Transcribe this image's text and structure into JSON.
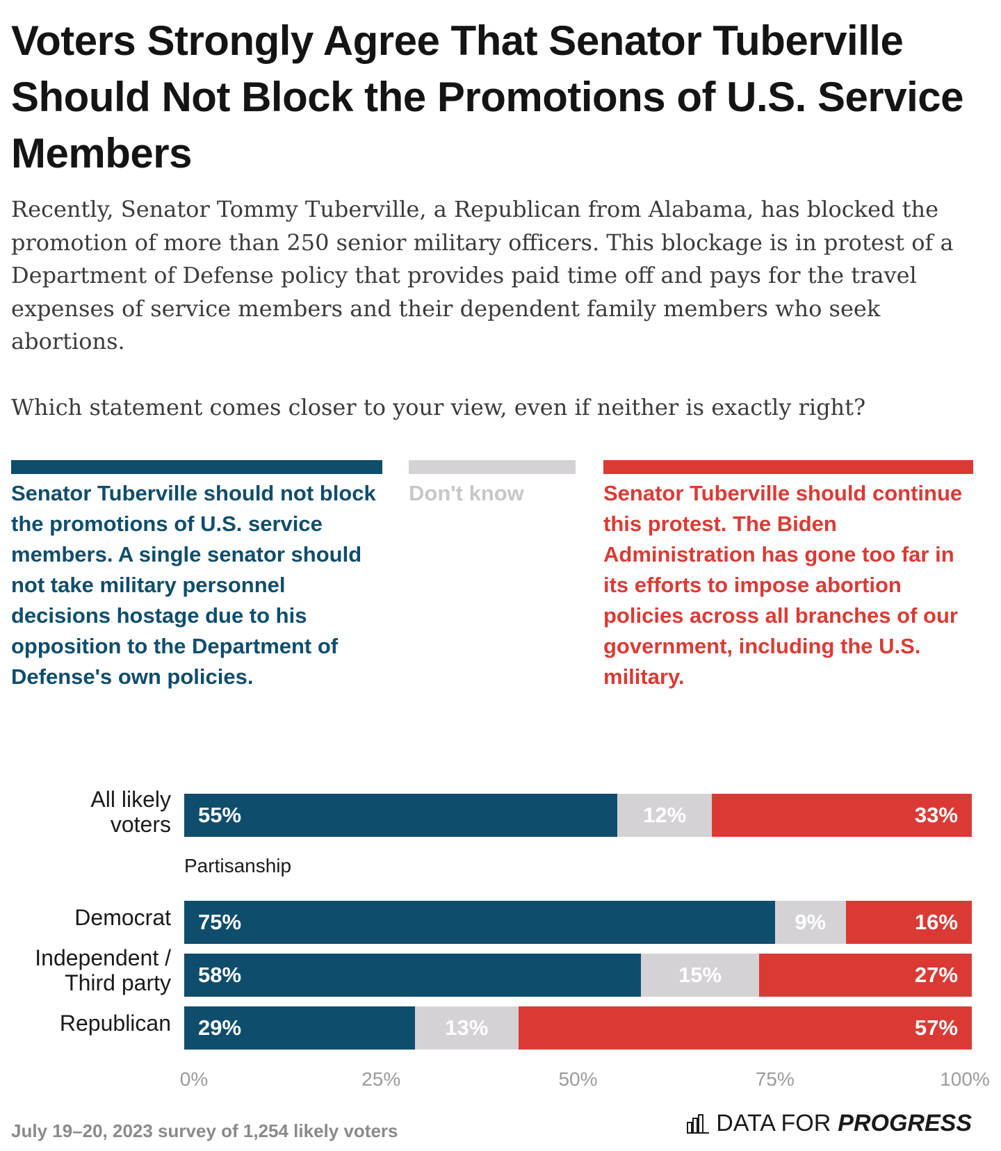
{
  "title": "Voters Strongly Agree That Senator Tuberville Should Not Block the Promotions of U.S. Service Members",
  "intro": "Recently, Senator Tommy Tuberville, a Republican from Alabama, has blocked the promotion of more than 250 senior military officers. This blockage is in protest of a Department of Defense policy that provides paid time off and pays for the travel expenses of service members and their dependent family members who seek abortions.",
  "question": "Which statement comes closer to your view, even if neither is exactly right?",
  "legend": {
    "agree": "Senator Tuberville should not block the promotions of U.S. service members. A single senator should not take military personnel decisions hostage due to his opposition to the Department of Defense's own policies.",
    "dont_know": "Don't know",
    "continue": "Senator Tuberville should continue this protest. The Biden Administration has gone too far in its efforts to impose abortion policies across all branches of our government, including the U.S. military."
  },
  "colors": {
    "agree": "#0f4d6c",
    "dont_know": "#d5d2d6",
    "continue": "#db3a34"
  },
  "section_label": "Partisanship",
  "chart_data": {
    "type": "bar",
    "orientation": "horizontal",
    "stacked": true,
    "categories": [
      "All likely voters",
      "Democrat",
      "Independent / Third party",
      "Republican"
    ],
    "series": [
      {
        "name": "Senator Tuberville should not block the promotions of U.S. service members.",
        "values": [
          55,
          75,
          58,
          29
        ]
      },
      {
        "name": "Don't know",
        "values": [
          12,
          9,
          15,
          13
        ]
      },
      {
        "name": "Senator Tuberville should continue this protest.",
        "values": [
          33,
          16,
          27,
          57
        ]
      }
    ],
    "value_labels": [
      [
        "55%",
        "12%",
        "33%"
      ],
      [
        "75%",
        "9%",
        "16%"
      ],
      [
        "58%",
        "15%",
        "27%"
      ],
      [
        "29%",
        "13%",
        "57%"
      ]
    ],
    "xlim": [
      0,
      100
    ],
    "xticks": [
      "0%",
      "25%",
      "50%",
      "75%",
      "100%"
    ],
    "grid": false
  },
  "footer": {
    "note": "July 19–20, 2023 survey of 1,254 likely voters",
    "brand_light": "DATA FOR",
    "brand_bold": "PROGRESS"
  }
}
